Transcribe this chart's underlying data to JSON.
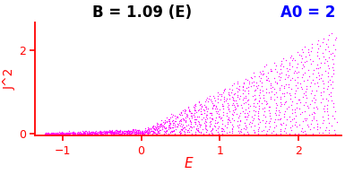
{
  "title_left": "B = 1.09 (E)",
  "title_right": "A0 = 2",
  "xlabel": "E",
  "ylabel": "J^2",
  "xlim": [
    -1.35,
    2.55
  ],
  "ylim": [
    -0.05,
    2.65
  ],
  "dot_color": "#FF00FF",
  "title_color_left": "#000000",
  "title_color_right": "#0000FF",
  "axis_color": "#FF0000",
  "label_color": "#FF0000",
  "xticks": [
    -1,
    0,
    1,
    2
  ],
  "yticks": [
    0,
    2
  ],
  "dot_size": 3.5,
  "title_fontsize": 12,
  "label_fontsize": 11,
  "tick_fontsize": 9
}
